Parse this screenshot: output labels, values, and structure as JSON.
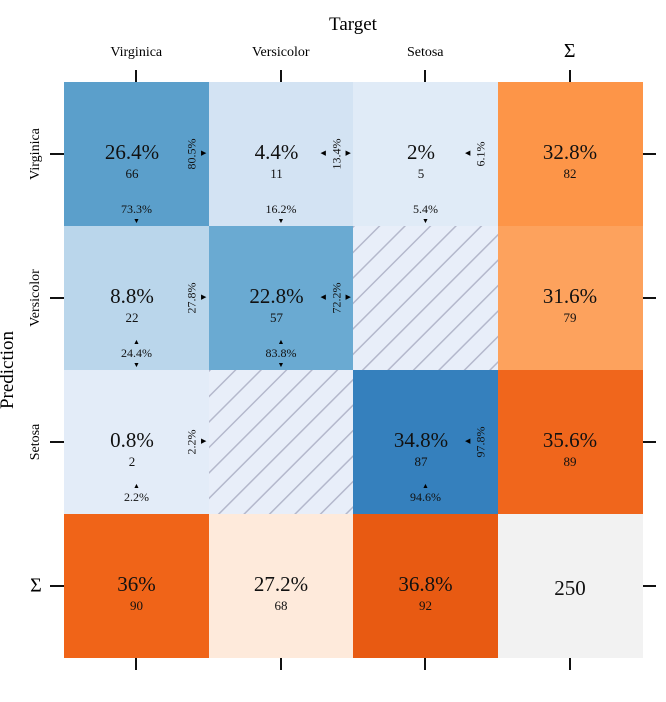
{
  "chart_data": {
    "type": "heatmap",
    "title": "",
    "xlabel": "Target",
    "ylabel": "Prediction",
    "x_categories": [
      "Virginica",
      "Versicolor",
      "Setosa",
      "Σ"
    ],
    "y_categories": [
      "Virginica",
      "Versicolor",
      "Setosa",
      "Σ"
    ],
    "cells": [
      [
        {
          "pct": "26.4%",
          "count": "66",
          "row_pct": "80.5%",
          "col_pct": "73.3%",
          "color": "#5b9fcb"
        },
        {
          "pct": "4.4%",
          "count": "11",
          "row_pct": "13.4%",
          "col_pct": "16.2%",
          "color": "#d3e3f3"
        },
        {
          "pct": "2%",
          "count": "5",
          "row_pct": "6.1%",
          "col_pct": "5.4%",
          "color": "#e0ebf7"
        },
        {
          "pct": "32.8%",
          "count": "82",
          "color": "#fd9548"
        }
      ],
      [
        {
          "pct": "8.8%",
          "count": "22",
          "row_pct": "27.8%",
          "col_pct": "24.4%",
          "color": "#bad6eb"
        },
        {
          "pct": "22.8%",
          "count": "57",
          "row_pct": "72.2%",
          "col_pct": "83.8%",
          "color": "#6aaad2"
        },
        {
          "empty": true,
          "color": "#e8eef9"
        },
        {
          "pct": "31.6%",
          "count": "79",
          "color": "#fda25d"
        }
      ],
      [
        {
          "pct": "0.8%",
          "count": "2",
          "row_pct": "2.2%",
          "col_pct": "2.2%",
          "color": "#e3ecf8"
        },
        {
          "empty": true,
          "color": "#e8eef9"
        },
        {
          "pct": "34.8%",
          "count": "87",
          "row_pct": "97.8%",
          "col_pct": "94.6%",
          "color": "#3580bd"
        },
        {
          "pct": "35.6%",
          "count": "89",
          "color": "#f0661c"
        }
      ],
      [
        {
          "pct": "36%",
          "count": "90",
          "color": "#f06418"
        },
        {
          "pct": "27.2%",
          "count": "68",
          "color": "#feeadb"
        },
        {
          "pct": "36.8%",
          "count": "92",
          "color": "#e85a12"
        },
        {
          "total": "250",
          "color": "#f2f2f2"
        }
      ]
    ]
  }
}
